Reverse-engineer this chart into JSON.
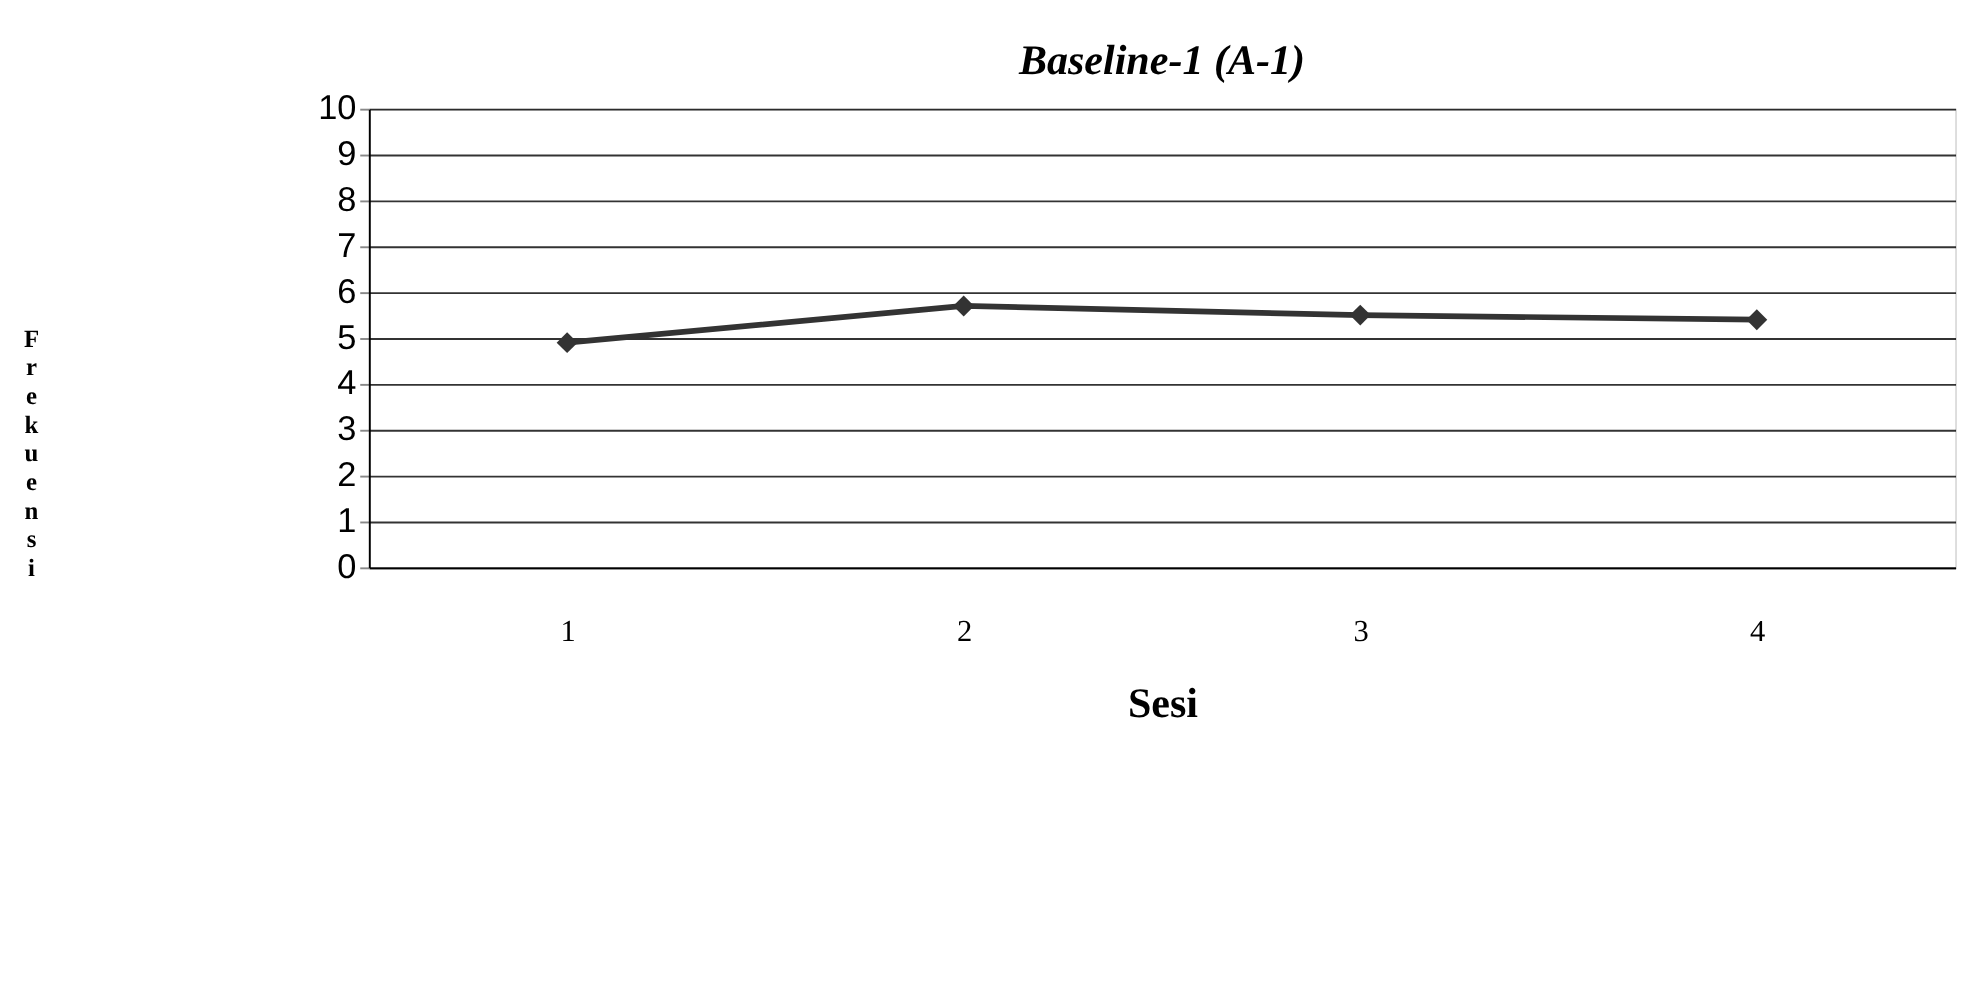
{
  "chart_data": {
    "type": "line",
    "title": "Baseline-1 (A-1)",
    "xlabel": "Sesi",
    "ylabel": "Frekuensi",
    "categories": [
      "1",
      "2",
      "3",
      "4"
    ],
    "series": [
      {
        "color": "#333333",
        "values": [
          4.9,
          5.7,
          5.5,
          5.4
        ]
      }
    ],
    "ylim": [
      0,
      10
    ],
    "yticks": [
      0,
      1,
      2,
      3,
      4,
      5,
      6,
      7,
      8,
      9,
      10
    ],
    "grid": "y",
    "marker": "diamond",
    "line_style": "solid",
    "legend": false
  }
}
